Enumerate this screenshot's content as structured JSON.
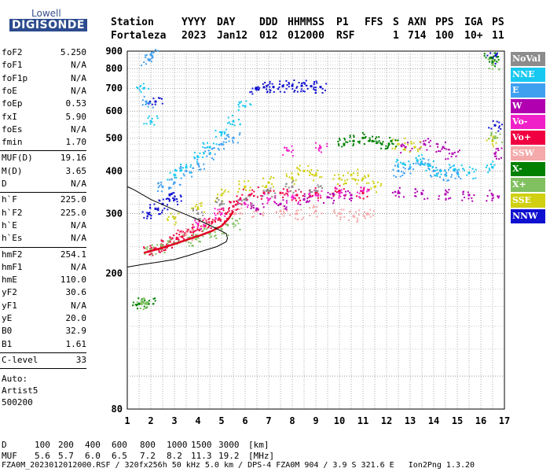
{
  "logo": {
    "top": "Lowell",
    "bottom": "DIGISONDE"
  },
  "header": {
    "labels": [
      "Station",
      "YYYY",
      "DAY",
      "DDD",
      "HHMMSS",
      "P1",
      "FFS",
      "S",
      "AXN",
      "PPS",
      "IGA",
      "PS"
    ],
    "values": [
      "Fortaleza",
      "2023",
      "Jan12",
      "012",
      "012000",
      "RSF",
      "",
      "1",
      "714",
      "100",
      "10+",
      "11"
    ]
  },
  "params": [
    [
      {
        "k": "foF2",
        "v": "5.250"
      },
      {
        "k": "foF1",
        "v": "N/A"
      },
      {
        "k": "foF1p",
        "v": "N/A"
      },
      {
        "k": "foE",
        "v": "N/A"
      },
      {
        "k": "foEp",
        "v": "0.53"
      },
      {
        "k": "fxI",
        "v": "5.90"
      },
      {
        "k": "foEs",
        "v": "N/A"
      },
      {
        "k": "fmin",
        "v": "1.70"
      }
    ],
    [
      {
        "k": "MUF(D)",
        "v": "19.16"
      },
      {
        "k": "M(D)",
        "v": "3.65"
      },
      {
        "k": "D",
        "v": "N/A"
      }
    ],
    [
      {
        "k": "h`F",
        "v": "225.0"
      },
      {
        "k": "h`F2",
        "v": "225.0"
      },
      {
        "k": "h`E",
        "v": "N/A"
      },
      {
        "k": "h`Es",
        "v": "N/A"
      }
    ],
    [
      {
        "k": "hmF2",
        "v": "254.1"
      },
      {
        "k": "hmF1",
        "v": "N/A"
      },
      {
        "k": "hmE",
        "v": "110.0"
      },
      {
        "k": "yF2",
        "v": "30.6"
      },
      {
        "k": "yF1",
        "v": "N/A"
      },
      {
        "k": "yE",
        "v": "20.0"
      },
      {
        "k": "B0",
        "v": "32.9"
      },
      {
        "k": "B1",
        "v": "1.61"
      }
    ],
    [
      {
        "k": "C-level",
        "v": "33"
      }
    ]
  ],
  "auto": [
    "Auto:",
    "Artist5",
    "500200"
  ],
  "legend": [
    {
      "label": "NoVal",
      "color": "#8c8c8c"
    },
    {
      "label": "NNE",
      "color": "#18c8f0"
    },
    {
      "label": "E",
      "color": "#40a0f0"
    },
    {
      "label": "W",
      "color": "#b000b0"
    },
    {
      "label": "Vo-",
      "color": "#f020c8"
    },
    {
      "label": "Vo+",
      "color": "#f00040"
    },
    {
      "label": "SSW",
      "color": "#f4aaaa"
    },
    {
      "label": "X-",
      "color": "#008000"
    },
    {
      "label": "X+",
      "color": "#80c060"
    },
    {
      "label": "SSE",
      "color": "#d0d010"
    },
    {
      "label": "NNW",
      "color": "#1010d0"
    }
  ],
  "chart_data": {
    "type": "scatter",
    "xlim": [
      1,
      17
    ],
    "ylim": [
      80,
      900
    ],
    "xticks": [
      "1",
      "2",
      "3",
      "4",
      "5",
      "6",
      "7",
      "8",
      "9",
      "10",
      "11",
      "12",
      "13",
      "14",
      "15",
      "16",
      "17"
    ],
    "yticks": [
      {
        "v": 80,
        "t": "80"
      },
      {
        "v": 200,
        "t": "200"
      },
      {
        "v": 300,
        "t": "300"
      },
      {
        "v": 400,
        "t": "400"
      },
      {
        "v": 500,
        "t": "500"
      },
      {
        "v": 600,
        "t": "600"
      },
      {
        "v": 700,
        "t": "700"
      },
      {
        "v": 800,
        "t": "800"
      },
      {
        "v": 900,
        "t": "900"
      }
    ],
    "y_scale": "log",
    "grid": true,
    "series": [
      {
        "name": "Vo+",
        "color": "#f00040",
        "points": [
          [
            1.9,
            232
          ],
          [
            2.2,
            237
          ],
          [
            2.5,
            242
          ],
          [
            2.8,
            248
          ],
          [
            3.1,
            253
          ],
          [
            3.4,
            259
          ],
          [
            3.7,
            265
          ],
          [
            4.0,
            270
          ],
          [
            4.3,
            276
          ],
          [
            4.6,
            283
          ],
          [
            4.9,
            290
          ],
          [
            5.2,
            300
          ],
          [
            5.5,
            315
          ],
          [
            5.8,
            330
          ],
          [
            6.2,
            340
          ],
          [
            6.8,
            345
          ],
          [
            7.5,
            345
          ],
          [
            8.2,
            340
          ],
          [
            9.0,
            345
          ],
          [
            10.0,
            350
          ],
          [
            11.0,
            345
          ]
        ]
      },
      {
        "name": "SSW",
        "color": "#f4aaaa",
        "points": [
          [
            5.6,
            300
          ],
          [
            6.5,
            305
          ],
          [
            7.5,
            305
          ],
          [
            8.2,
            300
          ],
          [
            9.0,
            305
          ],
          [
            10.0,
            300
          ],
          [
            10.6,
            295
          ],
          [
            11.2,
            300
          ],
          [
            3.5,
            260
          ],
          [
            4.2,
            275
          ]
        ]
      },
      {
        "name": "W",
        "color": "#b000b0",
        "points": [
          [
            6.5,
            310
          ],
          [
            7.5,
            320
          ],
          [
            8.5,
            330
          ],
          [
            9.5,
            335
          ],
          [
            10.5,
            340
          ],
          [
            12.5,
            345
          ],
          [
            13.5,
            343
          ],
          [
            14.5,
            342
          ],
          [
            15.5,
            340
          ],
          [
            16.5,
            340
          ],
          [
            12.8,
            470
          ],
          [
            13.6,
            480
          ],
          [
            14.4,
            470
          ],
          [
            14.8,
            450
          ],
          [
            16.6,
            450
          ]
        ]
      },
      {
        "name": "Vo-",
        "color": "#f020c8",
        "points": [
          [
            7.0,
            330
          ],
          [
            8.0,
            335
          ],
          [
            9.0,
            340
          ],
          [
            10.0,
            345
          ],
          [
            11.0,
            350
          ],
          [
            6.0,
            320
          ],
          [
            5.0,
            300
          ],
          [
            4.0,
            280
          ],
          [
            7.8,
            460
          ],
          [
            9.2,
            470
          ]
        ]
      },
      {
        "name": "NNW",
        "color": "#1010d0",
        "points": [
          [
            6.8,
            705
          ],
          [
            7.2,
            706
          ],
          [
            7.6,
            710
          ],
          [
            8.0,
            712
          ],
          [
            8.4,
            712
          ],
          [
            8.8,
            710
          ],
          [
            9.2,
            706
          ],
          [
            6.5,
            700
          ],
          [
            2.5,
            320
          ],
          [
            3.0,
            330
          ],
          [
            1.9,
            300
          ],
          [
            2.2,
            310
          ],
          [
            2.8,
            340
          ],
          [
            16.5,
            860
          ],
          [
            16.6,
            545
          ],
          [
            2.2,
            640
          ]
        ]
      },
      {
        "name": "E",
        "color": "#40a0f0",
        "points": [
          [
            2.0,
            880
          ],
          [
            1.9,
            850
          ],
          [
            1.8,
            640
          ],
          [
            2.5,
            360
          ],
          [
            3.0,
            370
          ],
          [
            3.5,
            400
          ],
          [
            4.0,
            420
          ],
          [
            4.5,
            450
          ],
          [
            5.0,
            480
          ],
          [
            5.5,
            500
          ],
          [
            12.5,
            400
          ],
          [
            13.0,
            410
          ],
          [
            13.5,
            420
          ],
          [
            14.0,
            400
          ],
          [
            14.5,
            390
          ],
          [
            15.0,
            395
          ]
        ]
      },
      {
        "name": "NNE",
        "color": "#18c8f0",
        "points": [
          [
            1.7,
            700
          ],
          [
            2.0,
            560
          ],
          [
            3.0,
            390
          ],
          [
            3.5,
            410
          ],
          [
            4.0,
            440
          ],
          [
            4.5,
            470
          ],
          [
            5.0,
            520
          ],
          [
            5.5,
            560
          ],
          [
            6.0,
            620
          ],
          [
            12.7,
            420
          ],
          [
            13.3,
            430
          ],
          [
            13.8,
            415
          ],
          [
            14.3,
            400
          ],
          [
            14.9,
            405
          ],
          [
            15.5,
            395
          ],
          [
            16.5,
            410
          ]
        ]
      },
      {
        "name": "SSE",
        "color": "#d0d010",
        "points": [
          [
            3.0,
            290
          ],
          [
            4.0,
            310
          ],
          [
            5.0,
            340
          ],
          [
            6.0,
            360
          ],
          [
            7.0,
            370
          ],
          [
            8.0,
            380
          ],
          [
            8.5,
            400
          ],
          [
            9.0,
            390
          ],
          [
            10.0,
            380
          ],
          [
            10.5,
            390
          ],
          [
            11.0,
            380
          ],
          [
            11.5,
            360
          ],
          [
            12.5,
            480
          ],
          [
            13.2,
            470
          ],
          [
            16.5,
            490
          ]
        ]
      },
      {
        "name": "X-",
        "color": "#008000",
        "points": [
          [
            10.2,
            480
          ],
          [
            10.6,
            490
          ],
          [
            11.0,
            500
          ],
          [
            11.4,
            490
          ],
          [
            11.8,
            480
          ],
          [
            12.2,
            490
          ],
          [
            16.4,
            860
          ],
          [
            16.5,
            840
          ],
          [
            1.5,
            163
          ],
          [
            1.9,
            163
          ]
        ]
      },
      {
        "name": "X+",
        "color": "#80c060",
        "points": [
          [
            2.0,
            235
          ],
          [
            2.5,
            240
          ],
          [
            3.0,
            245
          ],
          [
            3.5,
            250
          ],
          [
            4.0,
            255
          ],
          [
            4.5,
            262
          ],
          [
            5.0,
            270
          ],
          [
            5.5,
            280
          ],
          [
            16.5,
            820
          ],
          [
            16.6,
            500
          ],
          [
            1.6,
            163
          ],
          [
            1.8,
            163
          ]
        ]
      },
      {
        "name": "NoVal",
        "color": "#8c8c8c",
        "points": [
          [
            6.0,
            330
          ],
          [
            7.0,
            350
          ],
          [
            8.0,
            360
          ],
          [
            9.0,
            350
          ],
          [
            5.0,
            320
          ],
          [
            4.0,
            300
          ]
        ]
      }
    ],
    "profile": [
      [
        1.0,
        209
      ],
      [
        1.7,
        213
      ],
      [
        2.3,
        216
      ],
      [
        3.0,
        220
      ],
      [
        3.6,
        226
      ],
      [
        4.2,
        233
      ],
      [
        4.8,
        240
      ],
      [
        5.2,
        248
      ],
      [
        5.25,
        254
      ],
      [
        5.2,
        262
      ],
      [
        4.6,
        275
      ],
      [
        4.0,
        288
      ],
      [
        3.4,
        300
      ],
      [
        2.8,
        312
      ],
      [
        2.0,
        330
      ],
      [
        1.3,
        352
      ],
      [
        1.0,
        360
      ]
    ],
    "trace_fh": [
      [
        1.7,
        230
      ],
      [
        2.3,
        236
      ],
      [
        2.9,
        243
      ],
      [
        3.5,
        251
      ],
      [
        4.1,
        259
      ],
      [
        4.6,
        267
      ],
      [
        5.0,
        276
      ],
      [
        5.3,
        290
      ],
      [
        5.5,
        305
      ]
    ]
  },
  "table": {
    "d_label": "D",
    "d_values": [
      "100",
      "200",
      "400",
      "600",
      "800",
      "1000",
      "1500",
      "3000"
    ],
    "d_unit": "[km]",
    "muf_label": "MUF",
    "muf_values": [
      "5.6",
      "5.7",
      "6.0",
      "6.5",
      "7.2",
      "8.2",
      "11.3",
      "19.2"
    ],
    "muf_unit": "[MHz]"
  },
  "footer": "FZA0M_2023012012000.RSF / 320fx256h 50 kHz 5.0 km / DPS-4 FZA0M 904 / 3.9 S 321.6 E   Ion2Png 1.3.20"
}
